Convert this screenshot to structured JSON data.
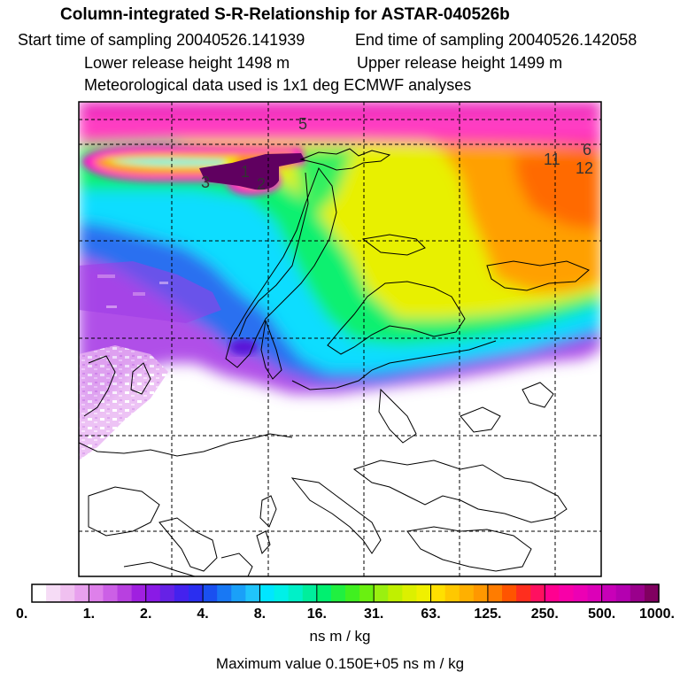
{
  "header": {
    "title": "Column-integrated S-R-Relationship for ASTAR-040526b",
    "start_time": "Start time of sampling 20040526.141939",
    "end_time": "End time of sampling 20040526.142058",
    "lower_release": "Lower release height 1498 m",
    "upper_release": "Upper release height 1499 m",
    "met_data": "Meteorological data used is 1x1 deg ECMWF analyses"
  },
  "map": {
    "labels": [
      "5",
      "3",
      "1",
      "2",
      "11",
      "12",
      "6"
    ]
  },
  "legend": {
    "ticks": [
      "0.",
      "1.",
      "2.",
      "4.",
      "8.",
      "16.",
      "31.",
      "63.",
      "125.",
      "250.",
      "500.",
      "1000."
    ],
    "colors": [
      "#ffffff",
      "#f6dcf6",
      "#f0c0f0",
      "#e8a0ee",
      "#de80ea",
      "#cc60e6",
      "#b840e0",
      "#a020e0",
      "#8a1ae6",
      "#6622e6",
      "#4422ee",
      "#2a2ef0",
      "#1a50f0",
      "#1878f4",
      "#1aa0f8",
      "#20c4fb",
      "#00e6ff",
      "#00f0e8",
      "#00f0c8",
      "#00ee9c",
      "#00f070",
      "#20f040",
      "#40f020",
      "#6af010",
      "#9af010",
      "#c0f000",
      "#dcf000",
      "#f0f000",
      "#ffe000",
      "#ffc800",
      "#ffb000",
      "#ff9800",
      "#ff7c00",
      "#ff5400",
      "#ff2e1e",
      "#ff1060",
      "#ff0090",
      "#f800a8",
      "#ec00b4",
      "#dc00b8",
      "#c800b8",
      "#b400b0",
      "#9a008c",
      "#800060"
    ],
    "units": "ns m / kg",
    "max_value": "Maximum value  0.150E+05 ns m / kg"
  }
}
